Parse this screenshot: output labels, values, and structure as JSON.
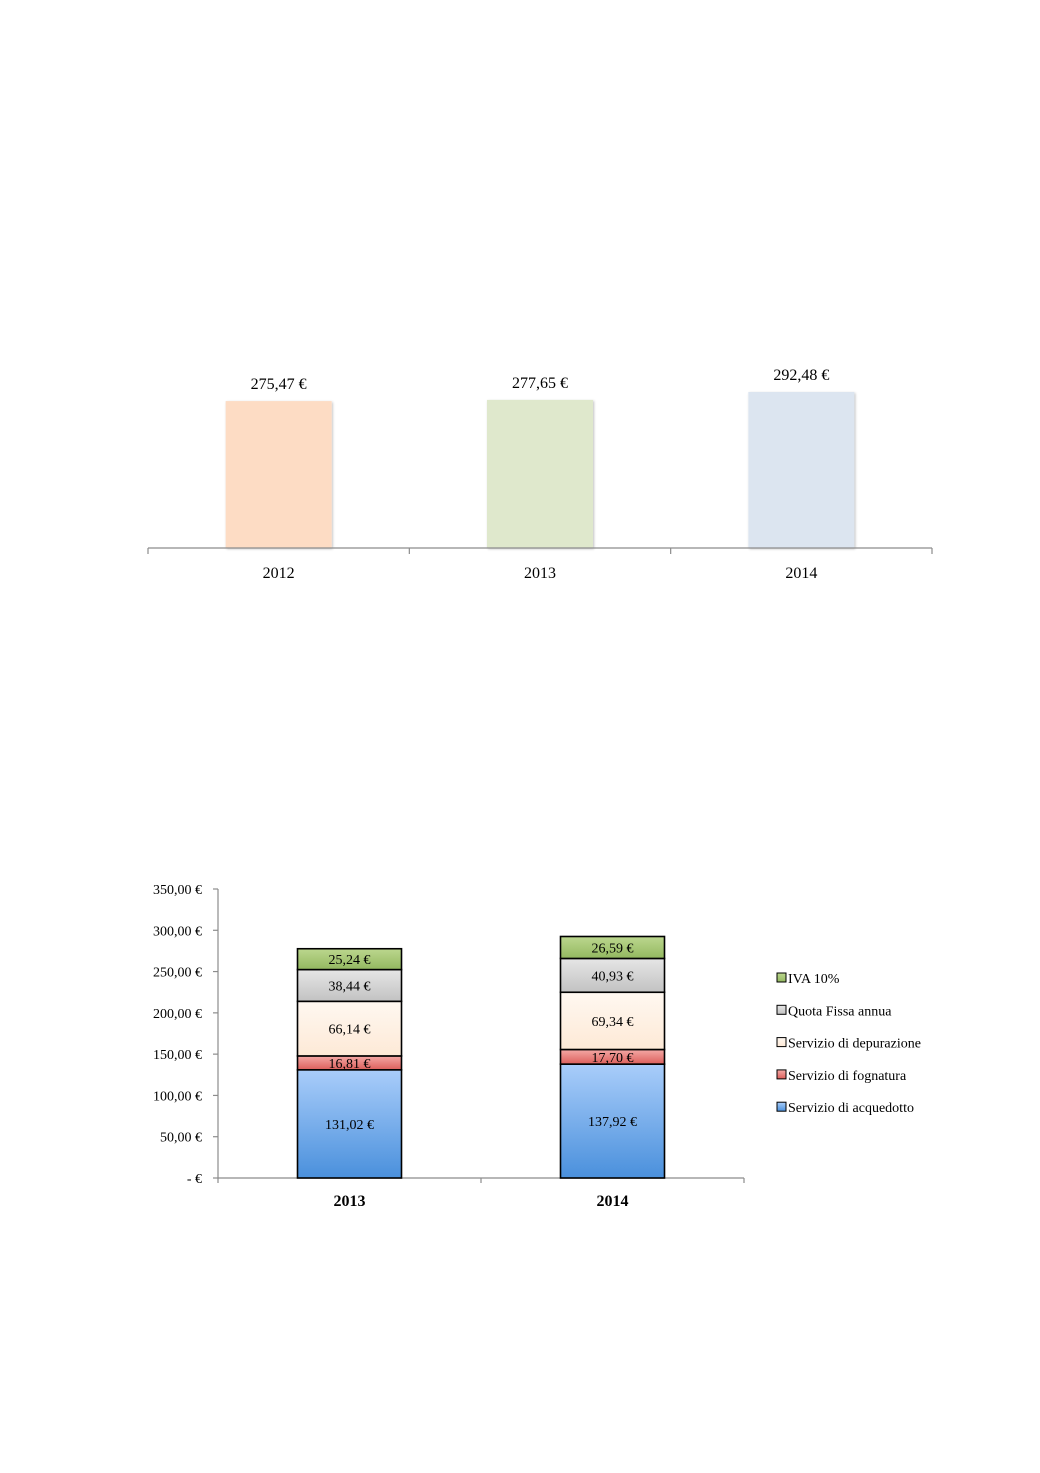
{
  "chart_data": [
    {
      "type": "bar",
      "title": "",
      "xlabel": "",
      "ylabel": "",
      "categories": [
        "2012",
        "2013",
        "2014"
      ],
      "values": [
        275.47,
        277.65,
        292.48
      ],
      "data_labels": [
        "275,47 €",
        "277,65 €",
        "292,48 €"
      ],
      "colors": [
        "#fddcc4",
        "#dfe8cc",
        "#dce5f0"
      ],
      "ylim": [
        0,
        292.48
      ],
      "grid": false,
      "legend": "none"
    },
    {
      "type": "bar",
      "stacked": true,
      "title": "",
      "xlabel": "",
      "ylabel": "",
      "categories": [
        "2013",
        "2014"
      ],
      "ylim": [
        0,
        350
      ],
      "yticks": [
        0,
        50,
        100,
        150,
        200,
        250,
        300,
        350
      ],
      "ytick_labels": [
        "-  €",
        "50,00 €",
        "100,00 €",
        "150,00 €",
        "200,00 €",
        "250,00 €",
        "300,00 €",
        "350,00 €"
      ],
      "grid": false,
      "legend": "right",
      "series": [
        {
          "name": "Servizio di acquedotto",
          "values": [
            131.02,
            137.92
          ],
          "labels": [
            "131,02 €",
            "137,92 €"
          ],
          "color": "#7fb0ee"
        },
        {
          "name": "Servizio di fognatura",
          "values": [
            16.81,
            17.7
          ],
          "labels": [
            "16,81 €",
            "17,70 €"
          ],
          "color": "#ec8f8d"
        },
        {
          "name": "Servizio di depurazione",
          "values": [
            66.14,
            69.34
          ],
          "labels": [
            "66,14 €",
            "69,34 €"
          ],
          "color": "#fdeee0"
        },
        {
          "name": "Quota Fissa annua",
          "values": [
            38.44,
            40.93
          ],
          "labels": [
            "38,44 €",
            "40,93 €"
          ],
          "color": "#d2d2d2"
        },
        {
          "name": "IVA 10%",
          "values": [
            25.24,
            26.59
          ],
          "labels": [
            "25,24 €",
            "26,59 €"
          ],
          "color": "#a8c77a"
        }
      ]
    }
  ]
}
